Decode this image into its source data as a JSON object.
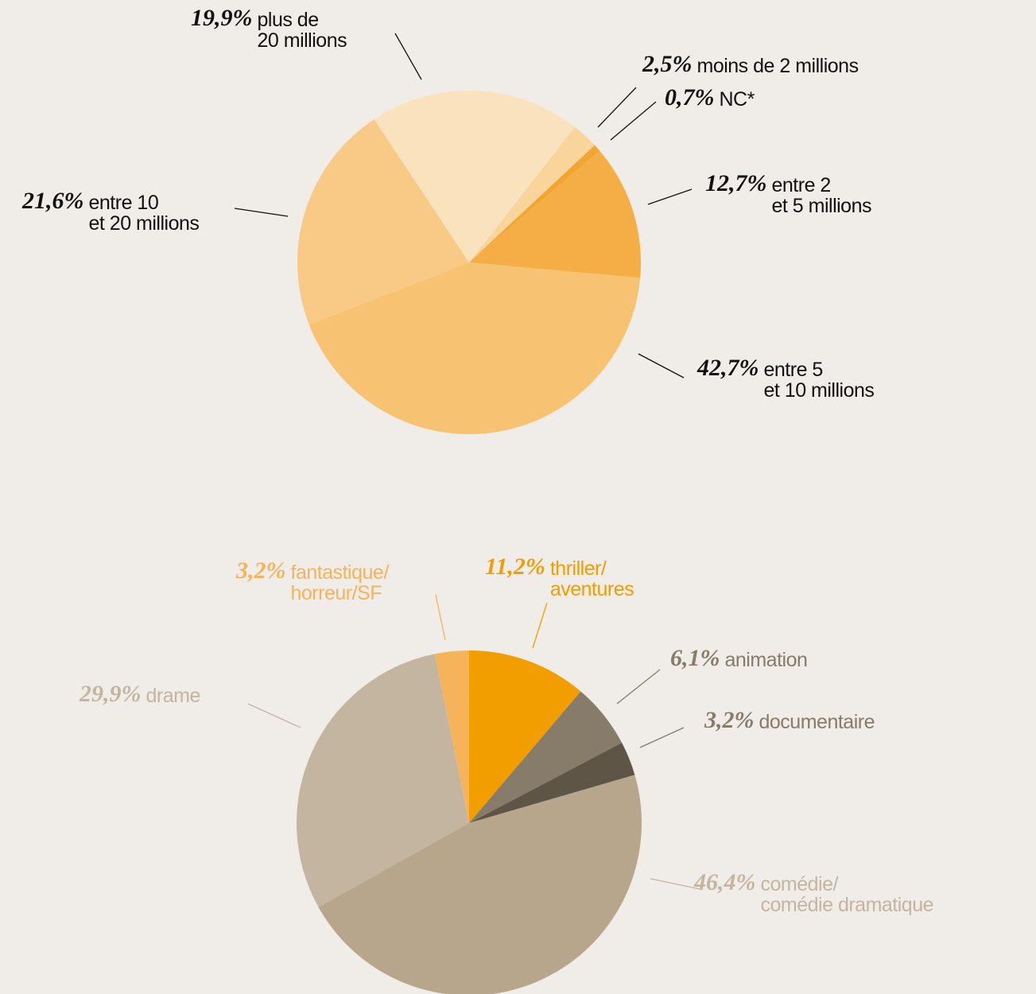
{
  "chart_data": [
    {
      "type": "pie",
      "categories": [
        "moins de 2 millions",
        "NC*",
        "entre 2\net 5 millions",
        "entre 5\net 10 millions",
        "entre 10\net 20 millions",
        "plus de\n20 millions"
      ],
      "values": [
        2.5,
        0.7,
        12.7,
        42.7,
        21.6,
        19.9
      ],
      "value_labels": [
        "2,5%",
        "0,7%",
        "12,7%",
        "42,7%",
        "21,6%",
        "19,9%"
      ],
      "colors": [
        "#f9d49b",
        "#f3a532",
        "#f5ae45",
        "#f8c273",
        "#f8ca86",
        "#fbe2bf"
      ],
      "label_colors": [
        "#111111",
        "#111111",
        "#111111",
        "#111111",
        "#111111",
        "#111111"
      ]
    },
    {
      "type": "pie",
      "categories": [
        "thriller/\naventures",
        "animation",
        "documentaire",
        "comédie/\ncomédie dramatique",
        "drame",
        "fantastique/\nhorreur/SF"
      ],
      "values": [
        11.2,
        6.1,
        3.2,
        46.4,
        29.9,
        3.2
      ],
      "value_labels": [
        "11,2%",
        "6,1%",
        "3,2%",
        "46,4%",
        "29,9%",
        "3,2%"
      ],
      "colors": [
        "#f29d00",
        "#877b69",
        "#5e5546",
        "#b7a58c",
        "#c4b5a0",
        "#f6b45a"
      ],
      "label_colors": [
        "#f29d00",
        "#877b69",
        "#877b69",
        "#c4b5a0",
        "#c4b5a0",
        "#f6b45a"
      ]
    }
  ]
}
